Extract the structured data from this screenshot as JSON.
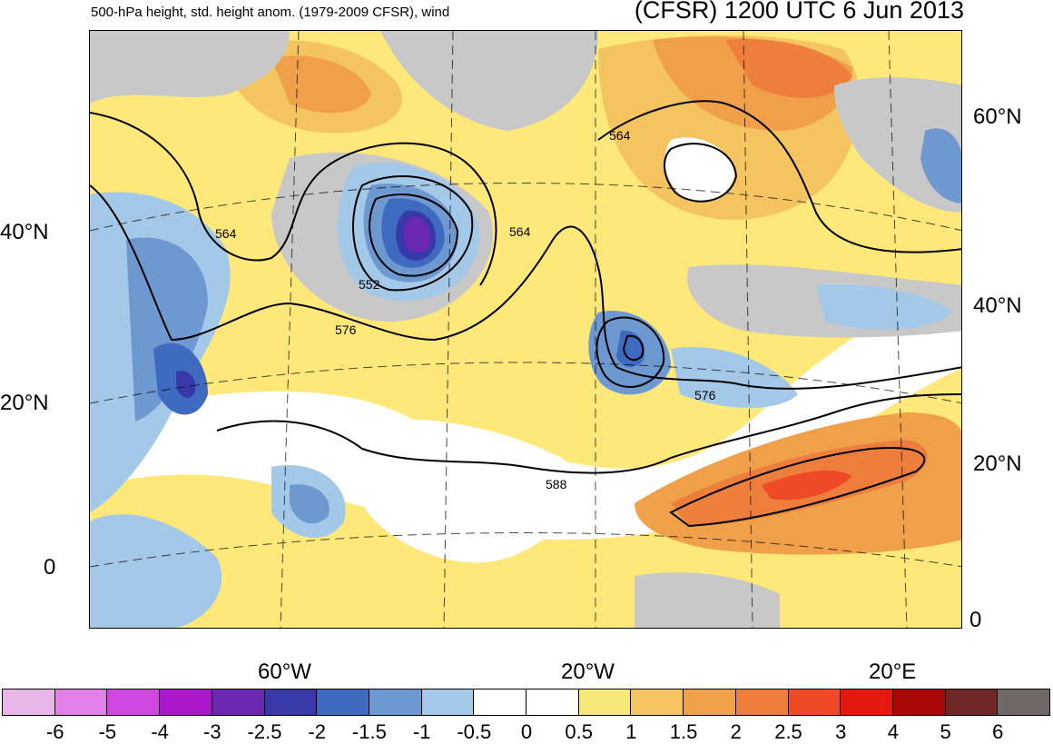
{
  "header": {
    "subtitle": "500-hPa height, std. height anom. (1979-2009 CFSR), wind",
    "title": "(CFSR) 1200 UTC 6 Jun 2013"
  },
  "lat_labels_left": [
    "40°N",
    "20°N",
    "0"
  ],
  "lat_labels_right": [
    "60°N",
    "40°N",
    "20°N",
    "0"
  ],
  "lon_labels": [
    "60°W",
    "20°W",
    "20°E"
  ],
  "contour_labels": [
    "564",
    "552",
    "576",
    "564",
    "564",
    "576",
    "588"
  ],
  "colorbar": {
    "colors": [
      "#e8b6e8",
      "#e080e8",
      "#d048e0",
      "#a818c8",
      "#6a28b0",
      "#3838a8",
      "#3e6ac0",
      "#6e98d0",
      "#a4c8e8",
      "#ffffff",
      "#ffffff",
      "#f8e878",
      "#f4c460",
      "#f0a048",
      "#ee7e3c",
      "#ee4a28",
      "#e41a10",
      "#a80808",
      "#6e2828",
      "#706868"
    ],
    "labels": [
      "-6",
      "-5",
      "-4",
      "-3",
      "-2.5",
      "-2",
      "-1.5",
      "-1",
      "-0.5",
      "0",
      "0.5",
      "1",
      "1.5",
      "2",
      "2.5",
      "3",
      "4",
      "5",
      "6"
    ]
  }
}
